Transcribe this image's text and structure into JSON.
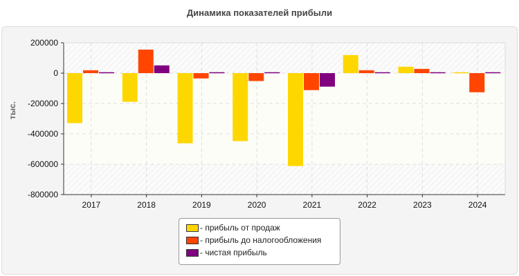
{
  "chart_data": {
    "type": "bar",
    "title": "Динамика показателей прибыли",
    "ylabel": "тыс.",
    "xlabel": "",
    "categories": [
      "2017",
      "2018",
      "2019",
      "2020",
      "2021",
      "2022",
      "2023",
      "2024"
    ],
    "ylim": [
      -800000,
      200000
    ],
    "yticks": [
      200000,
      0,
      -200000,
      -400000,
      -600000,
      -800000
    ],
    "ytick_labels": [
      "200000",
      "0",
      "-200000",
      "-400000",
      "-600000",
      "-800000"
    ],
    "grid": true,
    "legend_position": "bottom",
    "series": [
      {
        "name": "- прибыль от продаж",
        "color": "#FFD700",
        "values": [
          -329000,
          -189000,
          -462000,
          -448000,
          -612000,
          119000,
          42000,
          6000
        ]
      },
      {
        "name": "- прибыль до налогообложения",
        "color": "#FF4500",
        "values": [
          19000,
          155000,
          -35000,
          -52000,
          -112000,
          19000,
          28000,
          -126000
        ]
      },
      {
        "name": "- чистая прибыль",
        "color": "#800080",
        "values": [
          6000,
          51000,
          6000,
          6000,
          -89000,
          6000,
          6000,
          6000
        ]
      }
    ]
  }
}
